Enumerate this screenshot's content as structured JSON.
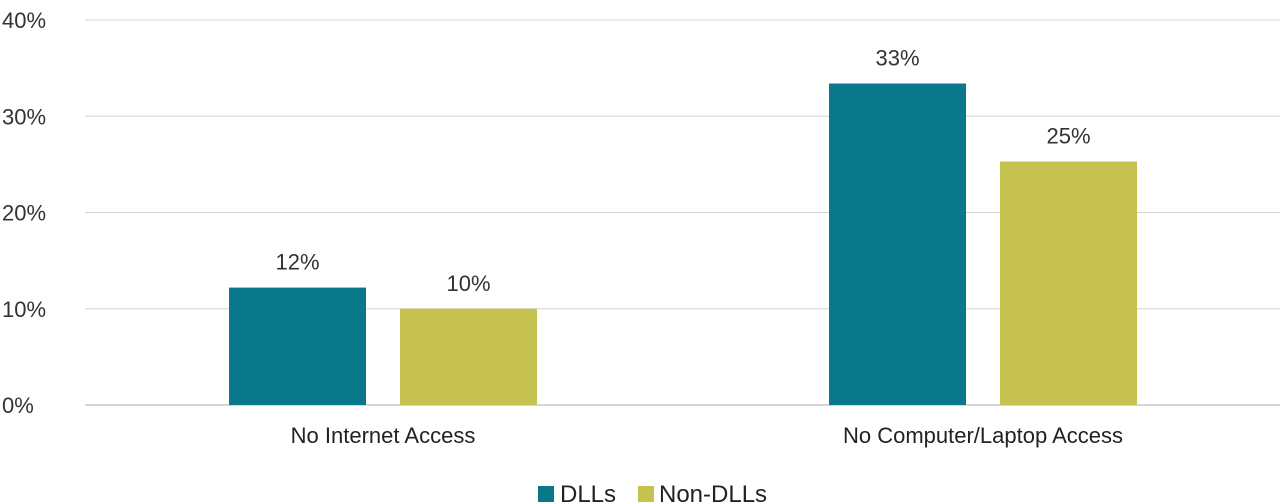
{
  "chart_data": {
    "type": "bar",
    "title": "",
    "xlabel": "",
    "ylabel": "",
    "categories": [
      "No Internet Access",
      "No Computer/Laptop Access"
    ],
    "series": [
      {
        "name": "DLLs",
        "values": [
          12.2,
          33.4
        ],
        "labels": [
          "12%",
          "33%"
        ],
        "color": "#08788a"
      },
      {
        "name": "Non-DLLs",
        "values": [
          10.0,
          25.3
        ],
        "labels": [
          "10%",
          "25%"
        ],
        "color": "#c5c250"
      }
    ],
    "ylim": [
      0,
      40
    ],
    "yticks": [
      0,
      10,
      20,
      30,
      40
    ],
    "ytick_labels": [
      "0%",
      "10%",
      "20%",
      "30%",
      "40%"
    ],
    "grid": true,
    "legend": "bottom-center"
  }
}
